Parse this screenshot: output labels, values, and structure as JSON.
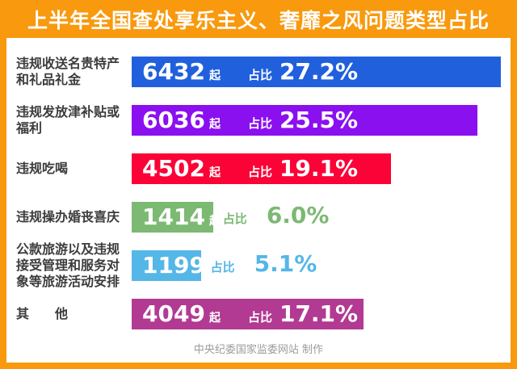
{
  "title": "上半年全国查处享乐主义、奢靡之风问题类型占比",
  "footer": "中央纪委国家监委网站 制作",
  "colors": {
    "frame_orange": "#F8990E",
    "label_text": "#3C3C3C",
    "footer_text": "#9C9C9C",
    "bar_text": "#FFFFFF"
  },
  "chart_data": {
    "type": "bar",
    "orientation": "horizontal",
    "title": "上半年全国查处享乐主义、奢靡之风问题类型占比",
    "categories": [
      "违规收送名贵特产和礼品礼金",
      "违规发放津补贴或福利",
      "违规吃喝",
      "违规操办婚丧喜庆",
      "公款旅游以及违规接受管理和服务对象等旅游活动安排",
      "其他"
    ],
    "series": [
      {
        "name": "起数",
        "unit": "起",
        "values": [
          6432,
          6036,
          4502,
          1414,
          1199,
          4049
        ]
      },
      {
        "name": "占比",
        "unit": "%",
        "values": [
          27.2,
          25.5,
          19.1,
          6.0,
          5.1,
          17.1
        ]
      }
    ],
    "bar_colors": [
      "#2160DD",
      "#8A10F0",
      "#FB0336",
      "#7CB973",
      "#55B6E8",
      "#B23A93"
    ],
    "value_label_format": "{value} 起  占比 {pct}%",
    "source": "中央纪委国家监委网站 制作",
    "legend": "none",
    "grid": false
  },
  "unit_label": "起",
  "share_label": "占比",
  "rows": [
    {
      "label_lines": [
        "违规收送名贵特产",
        "和礼品礼金"
      ],
      "value": "6432",
      "pct": 27.2,
      "pct_text": "27.2%",
      "color": "#2160DD",
      "pct_inside": true
    },
    {
      "label_lines": [
        "违规发放津补贴或",
        "福利"
      ],
      "value": "6036",
      "pct": 25.5,
      "pct_text": "25.5%",
      "color": "#8A10F0",
      "pct_inside": true
    },
    {
      "label_lines": [
        "违规吃喝"
      ],
      "value": "4502",
      "pct": 19.1,
      "pct_text": "19.1%",
      "color": "#FB0336",
      "pct_inside": true
    },
    {
      "label_lines": [
        "违规操办婚丧喜庆"
      ],
      "value": "1414",
      "pct": 6.0,
      "pct_text": "6.0%",
      "color": "#7CB973",
      "pct_inside": false
    },
    {
      "label_lines": [
        "公款旅游以及违规",
        "接受管理和服务对",
        "象等旅游活动安排"
      ],
      "value": "1199",
      "pct": 5.1,
      "pct_text": "5.1%",
      "color": "#55B6E8",
      "pct_inside": false
    },
    {
      "label_lines": [
        "其　　他"
      ],
      "value": "4049",
      "pct": 17.1,
      "pct_text": "17.1%",
      "color": "#B23A93",
      "pct_inside": true
    }
  ]
}
